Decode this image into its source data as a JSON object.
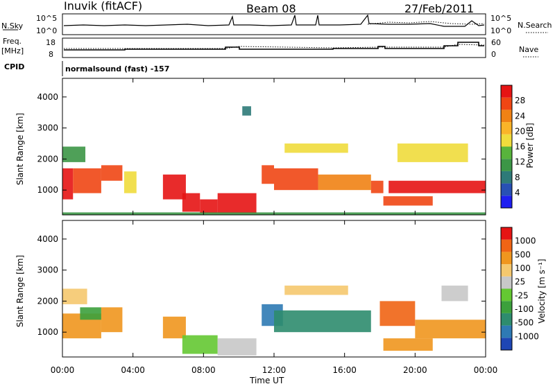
{
  "header": {
    "station": "Inuvik (fitACF)",
    "beam": "Beam 08",
    "date": "27/Feb/2011"
  },
  "top_panels": {
    "nsky_label": "N.Sky",
    "nsky_ticks": [
      "10^5",
      "10^0"
    ],
    "nsearch_label": "N.Search",
    "nsearch_ticks": [
      "10^5",
      "10^0"
    ],
    "freq_label_1": "Freq.",
    "freq_label_2": "[MHz]",
    "freq_ticks": [
      "18",
      "8"
    ],
    "nave_label": "Nave",
    "nave_ticks": [
      "60",
      "0"
    ],
    "cpid_label": "CPID",
    "cpid_value": "normalsound (fast) -157"
  },
  "colors": {
    "power_scale": [
      "#1e1ef0",
      "#2850b4",
      "#2e7a78",
      "#3c9646",
      "#58b43c",
      "#f0dc3c",
      "#fab428",
      "#f08214",
      "#f04614",
      "#e61414"
    ],
    "velocity_scale": [
      "#1e46b4",
      "#2e7ab4",
      "#2e8c6e",
      "#3ca03c",
      "#64c832",
      "#c8c8c8",
      "#f5c86e",
      "#f0961e",
      "#f06414",
      "#e61414"
    ]
  },
  "chart_data": [
    {
      "type": "heatmap",
      "name": "power",
      "xlabel": "",
      "ylabel": "Slant Range [km]",
      "xlim": [
        0,
        24
      ],
      "ylim": [
        200,
        4600
      ],
      "y_ticks": [
        1000,
        2000,
        3000,
        4000
      ],
      "colorbar_label": "Power [dB]",
      "colorbar_ticks": [
        "28",
        "24",
        "20",
        "16",
        "12",
        "8",
        "4"
      ],
      "bands": [
        {
          "t0": 0.0,
          "t1": 0.6,
          "r0": 700,
          "r1": 1700,
          "level": 9
        },
        {
          "t0": 0.6,
          "t1": 2.2,
          "r0": 900,
          "r1": 1700,
          "level": 8
        },
        {
          "t0": 2.2,
          "t1": 3.4,
          "r0": 1300,
          "r1": 1800,
          "level": 8
        },
        {
          "t0": 3.5,
          "t1": 4.2,
          "r0": 900,
          "r1": 1600,
          "level": 5
        },
        {
          "t0": 0.0,
          "t1": 1.3,
          "r0": 1900,
          "r1": 2400,
          "level": 3
        },
        {
          "t0": 5.7,
          "t1": 7.0,
          "r0": 700,
          "r1": 1500,
          "level": 9
        },
        {
          "t0": 6.8,
          "t1": 7.8,
          "r0": 300,
          "r1": 900,
          "level": 9
        },
        {
          "t0": 7.8,
          "t1": 8.8,
          "r0": 250,
          "r1": 700,
          "level": 9
        },
        {
          "t0": 8.8,
          "t1": 11.0,
          "r0": 250,
          "r1": 900,
          "level": 9
        },
        {
          "t0": 11.3,
          "t1": 12.0,
          "r0": 1200,
          "r1": 1800,
          "level": 8
        },
        {
          "t0": 12.0,
          "t1": 14.5,
          "r0": 1000,
          "r1": 1700,
          "level": 8
        },
        {
          "t0": 14.5,
          "t1": 17.5,
          "r0": 1000,
          "r1": 1500,
          "level": 7
        },
        {
          "t0": 17.5,
          "t1": 18.2,
          "r0": 900,
          "r1": 1300,
          "level": 8
        },
        {
          "t0": 18.2,
          "t1": 21.0,
          "r0": 500,
          "r1": 800,
          "level": 8
        },
        {
          "t0": 18.5,
          "t1": 24.0,
          "r0": 900,
          "r1": 1300,
          "level": 9
        },
        {
          "t0": 12.6,
          "t1": 16.2,
          "r0": 2200,
          "r1": 2500,
          "level": 5
        },
        {
          "t0": 19.0,
          "t1": 23.0,
          "r0": 1900,
          "r1": 2500,
          "level": 5
        },
        {
          "t0": 10.2,
          "t1": 10.7,
          "r0": 3400,
          "r1": 3700,
          "level": 2
        },
        {
          "t0": 0.0,
          "t1": 24.0,
          "r0": 200,
          "r1": 280,
          "level": 3
        }
      ]
    },
    {
      "type": "heatmap",
      "name": "velocity",
      "xlabel": "Time UT",
      "ylabel": "Slant Range [km]",
      "xlim": [
        0,
        24
      ],
      "ylim": [
        200,
        4600
      ],
      "y_ticks": [
        1000,
        2000,
        3000,
        4000
      ],
      "x_ticks": [
        "00:00",
        "04:00",
        "08:00",
        "12:00",
        "16:00",
        "20:00",
        "00:00"
      ],
      "colorbar_label": "Velocity [m s⁻¹]",
      "colorbar_ticks": [
        "1000",
        "500",
        "100",
        "25",
        "-25",
        "-100",
        "-500",
        "-1000"
      ],
      "bands": [
        {
          "t0": 0.0,
          "t1": 2.2,
          "r0": 800,
          "r1": 1600,
          "level": 7
        },
        {
          "t0": 1.0,
          "t1": 2.2,
          "r0": 1400,
          "r1": 1800,
          "level": 3
        },
        {
          "t0": 2.2,
          "t1": 3.4,
          "r0": 1000,
          "r1": 1800,
          "level": 7
        },
        {
          "t0": 0.0,
          "t1": 1.4,
          "r0": 1900,
          "r1": 2400,
          "level": 6
        },
        {
          "t0": 5.7,
          "t1": 7.0,
          "r0": 800,
          "r1": 1500,
          "level": 7
        },
        {
          "t0": 6.8,
          "t1": 8.8,
          "r0": 300,
          "r1": 900,
          "level": 4
        },
        {
          "t0": 8.8,
          "t1": 11.0,
          "r0": 250,
          "r1": 800,
          "level": 5
        },
        {
          "t0": 11.3,
          "t1": 12.5,
          "r0": 1200,
          "r1": 1900,
          "level": 1
        },
        {
          "t0": 12.0,
          "t1": 17.5,
          "r0": 1000,
          "r1": 1700,
          "level": 2
        },
        {
          "t0": 18.2,
          "t1": 21.0,
          "r0": 400,
          "r1": 800,
          "level": 7
        },
        {
          "t0": 18.0,
          "t1": 20.0,
          "r0": 1200,
          "r1": 2000,
          "level": 8
        },
        {
          "t0": 20.0,
          "t1": 24.0,
          "r0": 800,
          "r1": 1400,
          "level": 7
        },
        {
          "t0": 21.5,
          "t1": 23.0,
          "r0": 2000,
          "r1": 2500,
          "level": 5
        },
        {
          "t0": 12.6,
          "t1": 16.2,
          "r0": 2200,
          "r1": 2500,
          "level": 6
        }
      ]
    }
  ]
}
